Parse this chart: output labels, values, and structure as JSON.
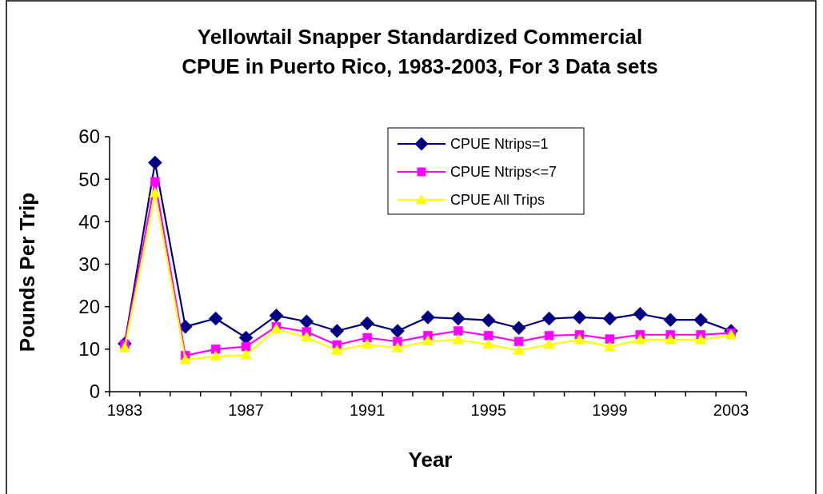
{
  "chart_data": {
    "type": "line",
    "title": "Yellowtail Snapper Standardized Commercial CPUE in Puerto Rico, 1983-2003, For 3 Data sets",
    "xlabel": "Year",
    "ylabel": "Pounds Per Trip",
    "categories": [
      "1983",
      null,
      null,
      null,
      "1987",
      null,
      null,
      null,
      "1991",
      null,
      null,
      null,
      "1995",
      null,
      null,
      null,
      "1999",
      null,
      null,
      null,
      "2003"
    ],
    "series": [
      {
        "name": "CPUE Ntrips=1",
        "color": "#000080",
        "marker": "diamond",
        "values": [
          11.3,
          53.9,
          15.3,
          17.2,
          12.7,
          17.9,
          16.5,
          14.3,
          16.1,
          14.3,
          17.5,
          17.2,
          16.8,
          15.0,
          17.2,
          17.5,
          17.2,
          18.3,
          16.9,
          16.9,
          14.3
        ]
      },
      {
        "name": "CPUE Ntrips<=7",
        "color": "#ff00ff",
        "marker": "square",
        "values": [
          11.1,
          49.4,
          8.5,
          10.0,
          10.6,
          15.3,
          14.1,
          11.0,
          12.7,
          11.8,
          13.2,
          14.3,
          13.2,
          11.8,
          13.2,
          13.4,
          12.4,
          13.4,
          13.4,
          13.4,
          13.8
        ]
      },
      {
        "name": "CPUE All Trips",
        "color": "#ffff00",
        "marker": "triangle",
        "values": [
          10.3,
          46.7,
          7.5,
          8.3,
          8.6,
          14.7,
          12.8,
          9.7,
          11.1,
          10.3,
          11.9,
          12.2,
          11.1,
          9.7,
          11.1,
          12.2,
          10.5,
          12.2,
          12.2,
          12.2,
          13.3
        ]
      }
    ],
    "ylim": [
      0,
      60
    ],
    "yticks": [
      0,
      10,
      20,
      30,
      40,
      50,
      60
    ],
    "grid": false,
    "legend": "top",
    "line_style": "solid"
  }
}
